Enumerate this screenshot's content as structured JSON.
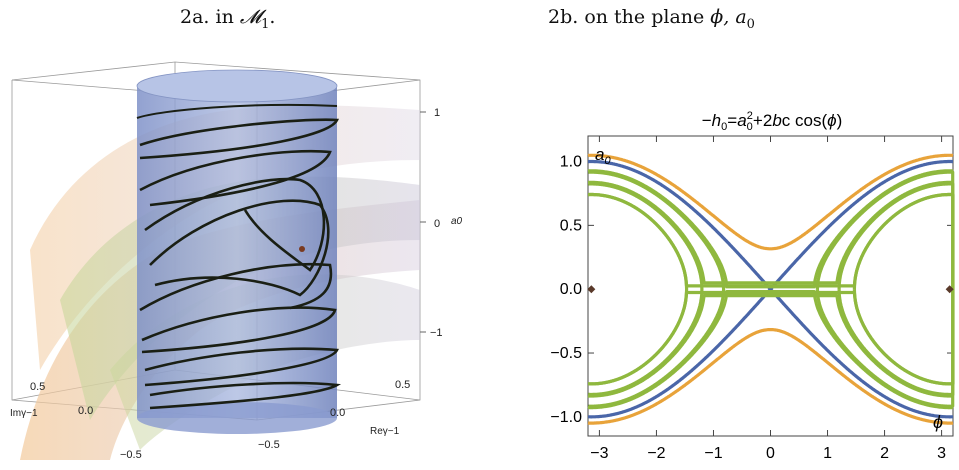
{
  "captions": {
    "left_prefix": "2a. in ",
    "left_math": "𝓜",
    "left_sub": "1",
    "left_suffix": ".",
    "right_prefix": "2b. on the plane ",
    "right_math": "ϕ, a",
    "right_sub": "0"
  },
  "left_plot": {
    "axis_label_vertical": "a0",
    "axis_label_im": "Imγ−1",
    "axis_label_re": "Reγ−1",
    "vertical_ticks": [
      "1",
      "0",
      "−1"
    ],
    "im_ticks": [
      "0.5",
      "0.0",
      "−0.5"
    ],
    "re_ticks": [
      "0.5",
      "0.0",
      "−0.5"
    ]
  },
  "chart_data": {
    "type": "line",
    "title": "−h0=a0²+2bc cos(ϕ)",
    "title_parts": {
      "a": "−",
      "b": "h",
      "c": "0",
      "d": "=",
      "e": "a",
      "f": "0",
      "g": "2",
      "h": "+2",
      "i": "b",
      "j": "c cos(",
      "k": "ϕ",
      "l": ")"
    },
    "xlabel": "ϕ",
    "ylabel": "a0",
    "ylabel_parts": {
      "main": "a",
      "sub": "0"
    },
    "xlim": [
      -3.2,
      3.2
    ],
    "ylim": [
      -1.15,
      1.2
    ],
    "x_ticks": [
      -3,
      -2,
      -1,
      0,
      1,
      2,
      3
    ],
    "x_tick_labels": [
      "−3",
      "−2",
      "−1",
      "0",
      "1",
      "2",
      "3"
    ],
    "y_ticks": [
      1.0,
      0.5,
      0.0,
      -0.5,
      -1.0
    ],
    "y_tick_labels": [
      "1.0",
      "0.5",
      "0.0",
      "−0.5",
      "−1.0"
    ],
    "curve_family": "a0^2 = h - 0.5*cos(phi)",
    "colors": {
      "outer": "#e8a33a",
      "separatrix": "#4a66a8",
      "inner": "#8fb83e",
      "fixed_point": "#5a3a2a"
    },
    "series": [
      {
        "role": "outer",
        "h": 0.6
      },
      {
        "role": "separatrix",
        "h": 0.5
      },
      {
        "role": "inner",
        "h": 0.36
      },
      {
        "role": "inner",
        "h": 0.2
      },
      {
        "role": "inner",
        "h": 0.05
      },
      {
        "role": "inner",
        "h": 0.34,
        "wrap": true
      },
      {
        "role": "inner",
        "h": 0.18,
        "wrap": true
      },
      {
        "role": "inner",
        "h": 0.05,
        "wrap": true
      }
    ],
    "fixed_points": [
      {
        "x": -3.1416,
        "y": 0
      },
      {
        "x": 3.1416,
        "y": 0
      }
    ]
  }
}
